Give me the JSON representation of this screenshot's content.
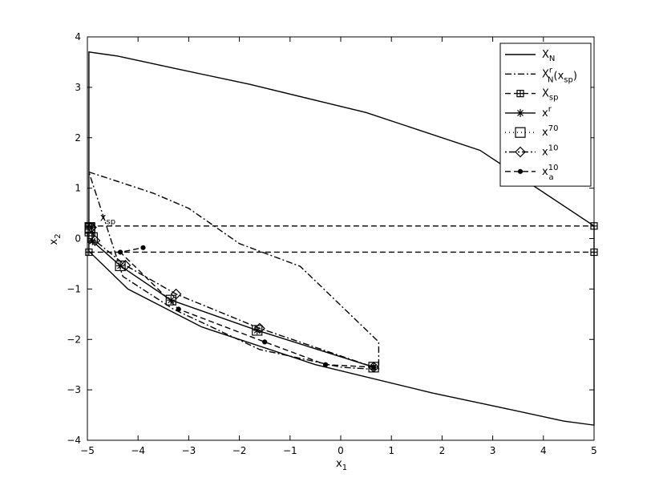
{
  "chart_data": {
    "type": "line",
    "xlabel": "x",
    "xlabel_sub": "1",
    "ylabel": "x",
    "ylabel_sub": "2",
    "xlim": [
      -5,
      5
    ],
    "ylim": [
      -4,
      4
    ],
    "xticks": [
      -5,
      -4,
      -3,
      -2,
      -1,
      0,
      1,
      2,
      3,
      4,
      5
    ],
    "yticks": [
      -4,
      -3,
      -2,
      -1,
      0,
      1,
      2,
      3,
      4
    ],
    "tick_labels_x": [
      "−5",
      "−4",
      "−3",
      "−2",
      "−1",
      "0",
      "1",
      "2",
      "3",
      "4",
      "5"
    ],
    "tick_labels_y": [
      "−4",
      "−3",
      "−2",
      "−1",
      "0",
      "1",
      "2",
      "3",
      "4"
    ],
    "grid": false,
    "legend_position": "top-right",
    "annotation": {
      "text": "x",
      "sub": "sp",
      "x": -4.75,
      "y": 0.35
    },
    "series": [
      {
        "name": "X_N",
        "label_base": "X",
        "label_sub": "N",
        "style": "solid",
        "closed": true,
        "x": [
          -4.97,
          -4.4,
          -3.3,
          -1.8,
          0.5,
          2.75,
          5.0,
          5.0,
          4.4,
          3.3,
          1.8,
          -0.5,
          -2.75,
          -4.2,
          -4.97,
          -4.97
        ],
        "y": [
          3.7,
          3.62,
          3.38,
          3.06,
          2.5,
          1.75,
          0.25,
          -3.7,
          -3.62,
          -3.38,
          -3.06,
          -2.5,
          -1.75,
          -1.0,
          -0.25,
          3.7
        ]
      },
      {
        "name": "X_N^r(x_sp)",
        "label_base": "X",
        "label_sub": "N",
        "label_sup": "r",
        "label_tail": "(x",
        "label_tail_sub": "sp",
        "label_end": ")",
        "style": "dashdot",
        "closed": true,
        "x": [
          -4.97,
          -4.3,
          -3.7,
          -3.0,
          -2.0,
          -0.8,
          0.75,
          0.75,
          0.0,
          -1.6,
          -3.3,
          -4.3,
          -4.97
        ],
        "y": [
          1.32,
          1.1,
          0.9,
          0.6,
          -0.1,
          -0.55,
          -2.05,
          -2.6,
          -2.55,
          -2.2,
          -1.4,
          -0.75,
          1.32
        ]
      },
      {
        "name": "X_sp",
        "label_base": "X",
        "label_sub": "sp",
        "style": "dashed",
        "marker": "square-plus",
        "segments": [
          {
            "x": [
              -4.97,
              5.0
            ],
            "y": [
              0.25,
              0.25
            ]
          },
          {
            "x": [
              -4.97,
              5.0
            ],
            "y": [
              -0.27,
              -0.27
            ]
          }
        ]
      },
      {
        "name": "x^r",
        "label_base": "x",
        "label_sup": "r",
        "style": "solid",
        "marker": "star",
        "x": [
          0.65,
          -1.65,
          -3.35,
          -4.35,
          -4.9,
          -4.92
        ],
        "y": [
          -2.55,
          -1.82,
          -1.22,
          -0.54,
          -0.05,
          0.22
        ]
      },
      {
        "name": "x^70",
        "label_base": "x",
        "label_sup": "70",
        "style": "none",
        "marker": "square",
        "x": [
          0.65,
          -1.65,
          -3.35,
          -4.35,
          -4.9,
          -4.95,
          -4.95,
          -4.95
        ],
        "y": [
          -2.55,
          -1.82,
          -1.22,
          -0.54,
          0.02,
          0.15,
          0.2,
          0.22
        ]
      },
      {
        "name": "x^10",
        "label_base": "x",
        "label_sup": "10",
        "style": "dotdash",
        "marker": "diamond",
        "x": [
          0.65,
          -1.6,
          -3.25,
          -4.25,
          -4.85,
          -4.92
        ],
        "y": [
          -2.55,
          -1.78,
          -1.1,
          -0.53,
          -0.04,
          0.22
        ]
      },
      {
        "name": "x_a^10",
        "label_base": "x",
        "label_sup": "10",
        "label_sub": "a",
        "style": "dashed",
        "marker": "dot",
        "x": [
          0.65,
          -0.3,
          -1.5,
          -3.2,
          -4.35,
          -3.9
        ],
        "y": [
          -2.55,
          -2.5,
          -2.05,
          -1.4,
          -0.27,
          -0.18
        ]
      }
    ]
  }
}
